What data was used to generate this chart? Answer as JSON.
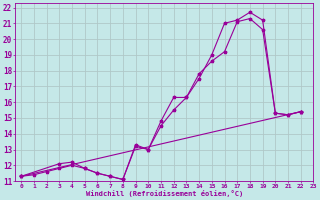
{
  "background_color": "#c5e8e8",
  "grid_color": "#b0c8c8",
  "line_color": "#990099",
  "xlim": [
    -0.5,
    23
  ],
  "ylim": [
    11,
    22.3
  ],
  "xlabel": "Windchill (Refroidissement éolien,°C)",
  "xticks": [
    0,
    1,
    2,
    3,
    4,
    5,
    6,
    7,
    8,
    9,
    10,
    11,
    12,
    13,
    14,
    15,
    16,
    17,
    18,
    19,
    20,
    21,
    22,
    23
  ],
  "yticks": [
    11,
    12,
    13,
    14,
    15,
    16,
    17,
    18,
    19,
    20,
    21,
    22
  ],
  "line1_x": [
    0,
    1,
    2,
    3,
    4,
    5,
    6,
    7,
    8,
    9,
    10,
    11,
    12,
    13,
    14,
    15,
    16,
    17,
    18,
    19,
    20,
    21,
    22
  ],
  "line1_y": [
    11.3,
    11.4,
    11.6,
    11.8,
    12.0,
    11.8,
    11.5,
    11.3,
    11.1,
    13.2,
    13.0,
    14.5,
    15.5,
    16.3,
    17.8,
    18.6,
    19.2,
    21.1,
    21.3,
    20.6,
    15.3,
    15.2,
    15.4
  ],
  "line2_x": [
    0,
    3,
    4,
    5,
    6,
    7,
    8,
    9,
    10,
    11,
    12,
    13,
    14,
    15,
    16,
    17,
    18,
    19,
    20,
    21,
    22
  ],
  "line2_y": [
    11.3,
    12.1,
    12.2,
    11.8,
    11.5,
    11.3,
    11.1,
    13.3,
    13.0,
    14.8,
    16.3,
    16.3,
    17.5,
    19.0,
    21.0,
    21.2,
    21.7,
    21.2,
    15.3,
    15.2,
    15.4
  ],
  "line3_x": [
    0,
    22
  ],
  "line3_y": [
    11.3,
    15.4
  ],
  "figwidth": 3.2,
  "figheight": 2.0,
  "dpi": 100
}
